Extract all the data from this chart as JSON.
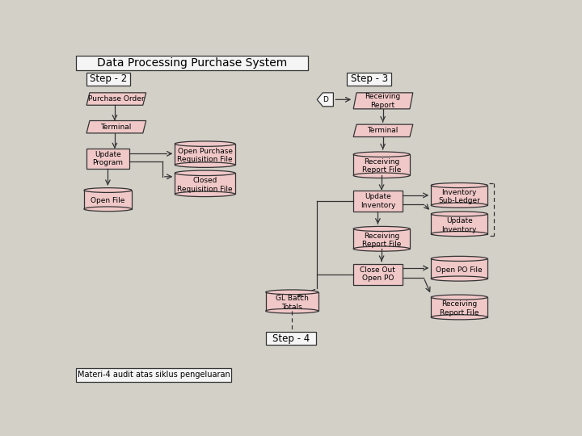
{
  "bg_color": "#d3d0c8",
  "title": "Data Processing Purchase System",
  "step2_label": "Step - 2",
  "step3_label": "Step - 3",
  "step4_label": "Step - 4",
  "footer": "Materi-4 audit atas siklus pengeluaran",
  "shape_fill": "#f0c8c8",
  "white_fill": "#f5f5f5",
  "ec": "#333333",
  "lw": 0.9,
  "fs": 6.5
}
